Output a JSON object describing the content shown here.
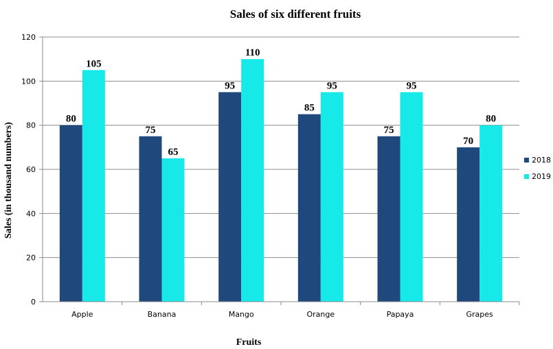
{
  "chart_data": {
    "type": "bar",
    "title": "Sales of six different fruits",
    "xlabel": "Fruits",
    "ylabel": "Sales (in thousand numbers)",
    "categories": [
      "Apple",
      "Banana",
      "Mango",
      "Orange",
      "Papaya",
      "Grapes"
    ],
    "series": [
      {
        "name": "2018",
        "values": [
          80,
          75,
          95,
          85,
          75,
          70
        ],
        "color": "#1f497d"
      },
      {
        "name": "2019",
        "values": [
          105,
          65,
          110,
          95,
          95,
          80
        ],
        "color": "#17e8e8"
      }
    ],
    "ylim": [
      0,
      120
    ],
    "yticks": [
      "0",
      "20",
      "40",
      "60",
      "80",
      "100",
      "120"
    ],
    "grid": true,
    "legend_position": "right",
    "data_labels": true
  }
}
